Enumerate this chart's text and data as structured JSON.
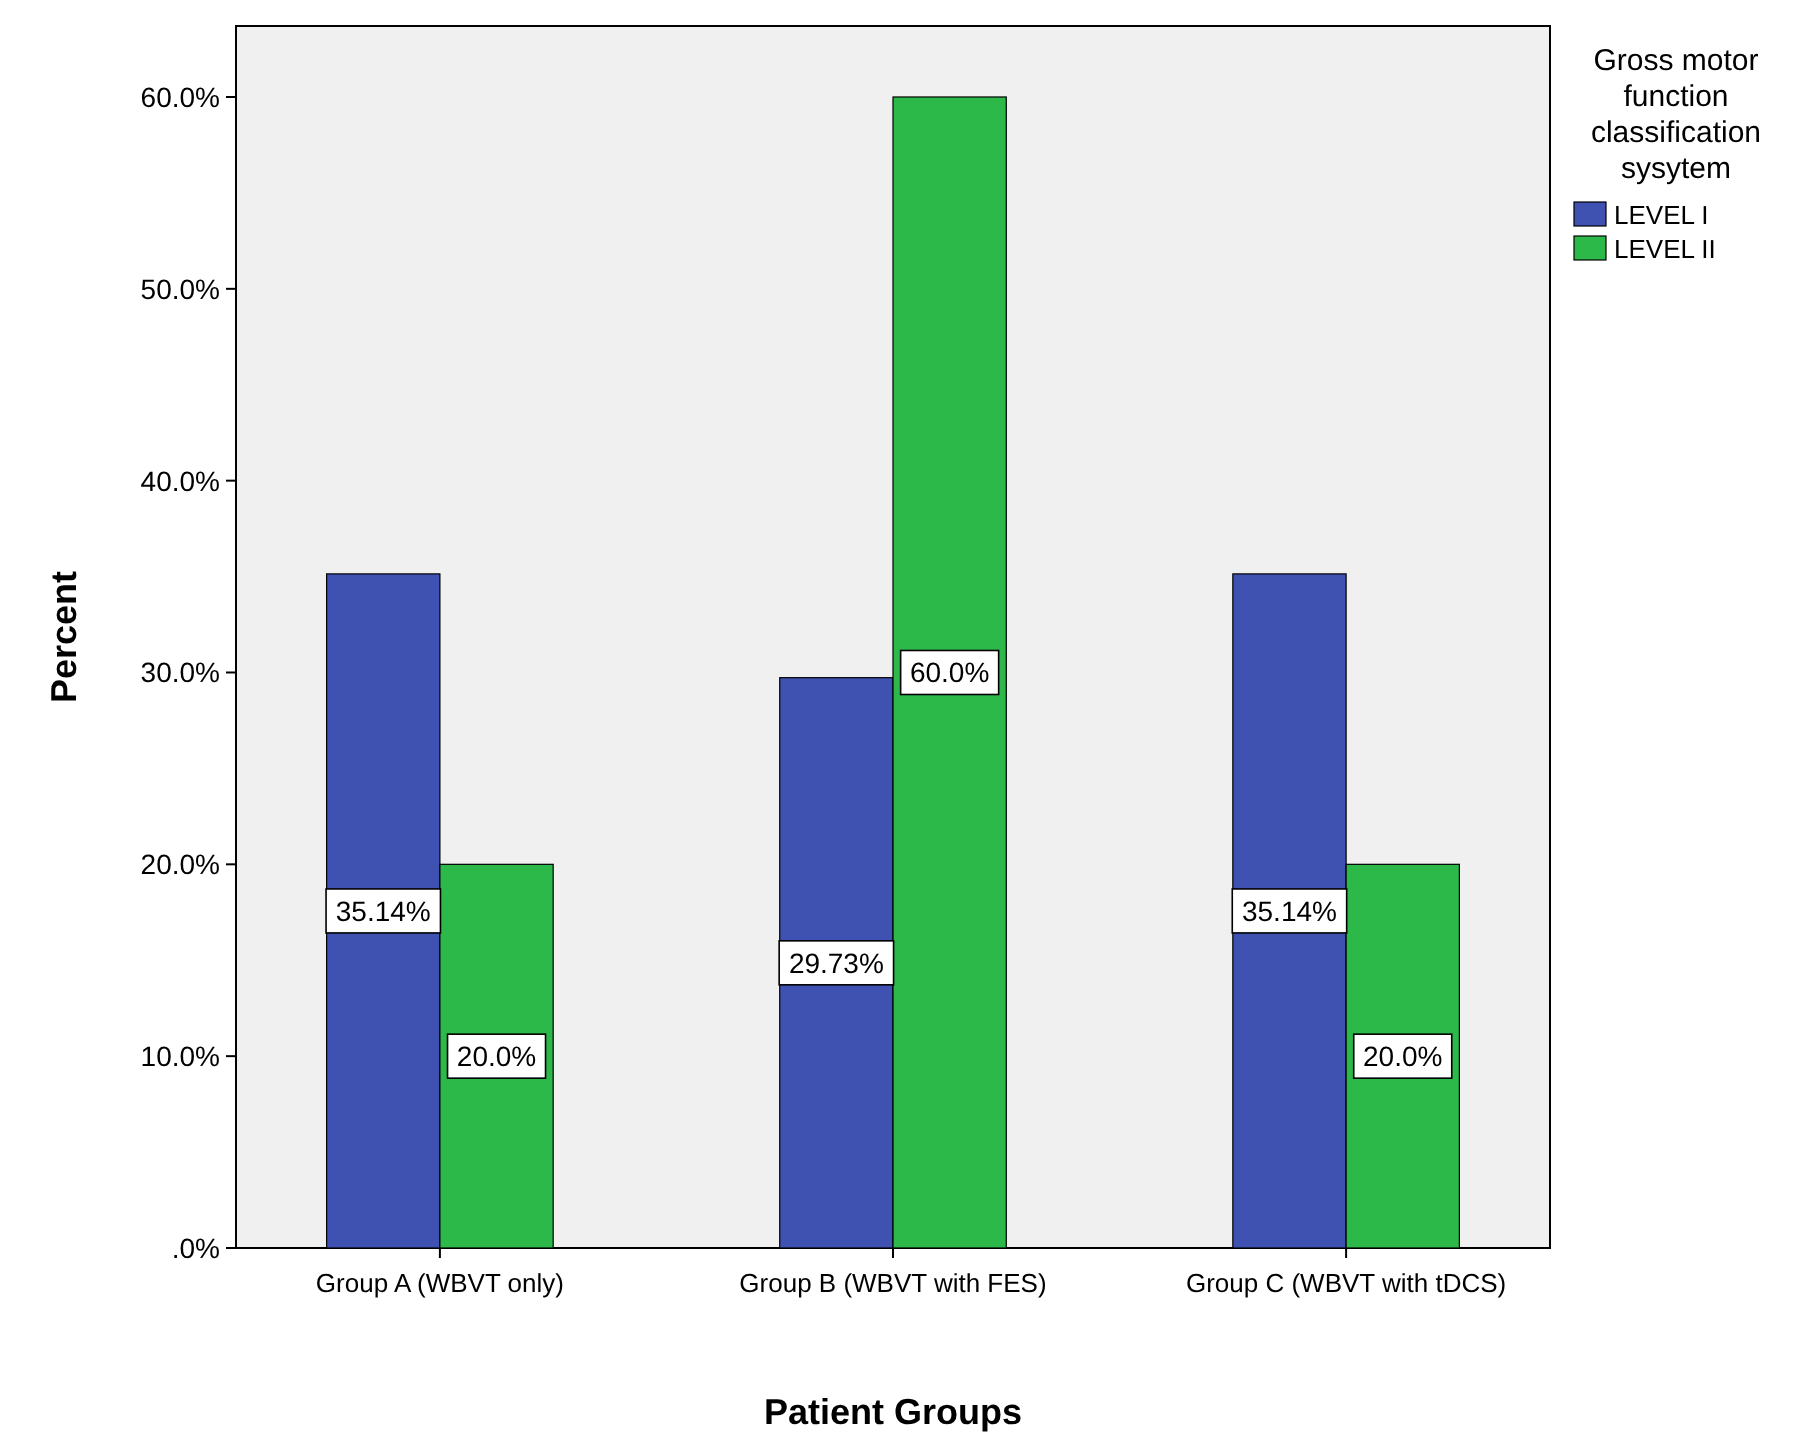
{
  "chart_data": {
    "type": "bar",
    "xlabel": "Patient Groups",
    "ylabel": "Percent",
    "legend_title": "Gross motor function classification sysytem",
    "legend": "top right",
    "categories": [
      "Group A (WBVT only)",
      "Group B (WBVT with FES)",
      "Group C (WBVT with tDCS)"
    ],
    "series": [
      {
        "name": "LEVEL I",
        "color": "#3f51b1",
        "values": [
          35.14,
          29.73,
          35.14
        ],
        "value_labels": [
          "35.14%",
          "29.73%",
          "35.14%"
        ]
      },
      {
        "name": "LEVEL II",
        "color": "#2db84a",
        "values": [
          20.0,
          60.0,
          20.0
        ],
        "value_labels": [
          "20.0%",
          "60.0%",
          "20.0%"
        ]
      }
    ],
    "ylim": [
      0,
      63.7
    ],
    "yticks": [
      {
        "value": 0,
        "label": ".0%"
      },
      {
        "value": 10,
        "label": "10.0%"
      },
      {
        "value": 20,
        "label": "20.0%"
      },
      {
        "value": 30,
        "label": "30.0%"
      },
      {
        "value": 40,
        "label": "40.0%"
      },
      {
        "value": 50,
        "label": "50.0%"
      },
      {
        "value": 60,
        "label": "60.0%"
      }
    ]
  }
}
